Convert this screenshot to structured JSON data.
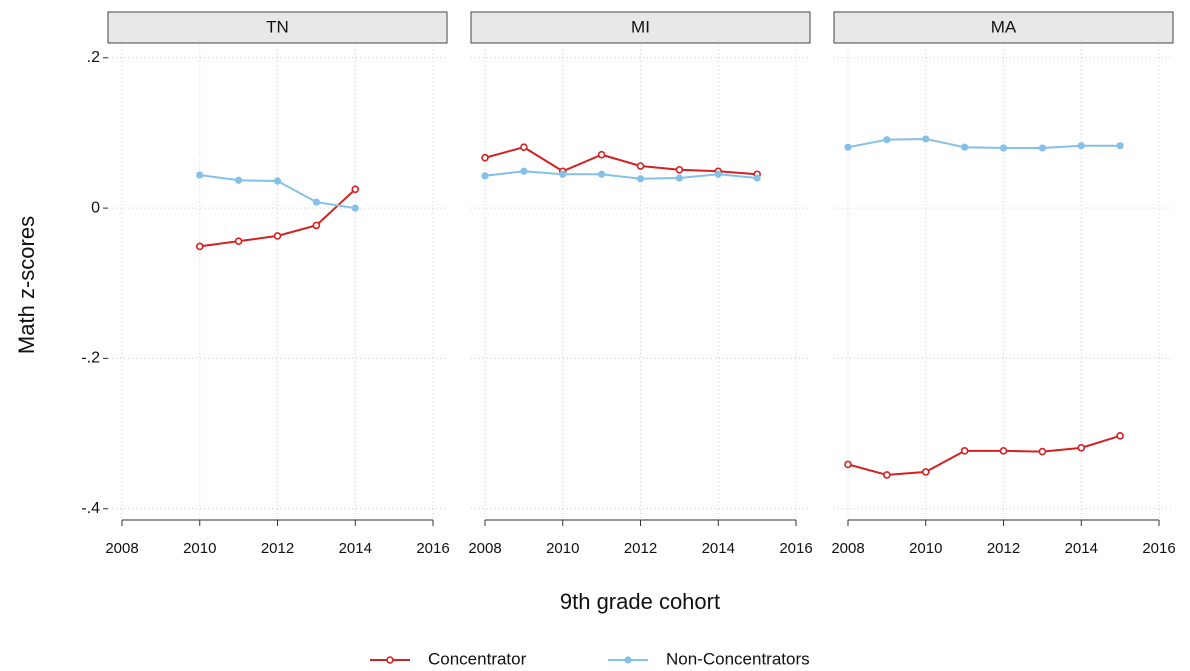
{
  "chart_data": [
    {
      "type": "line",
      "title": "TN",
      "ylabel": "Math z-scores",
      "x": [
        2010,
        2011,
        2012,
        2013,
        2014
      ],
      "series": [
        {
          "name": "Concentrator",
          "color": "#d42020",
          "values": [
            -0.051,
            -0.044,
            -0.037,
            -0.023,
            0.025
          ]
        },
        {
          "name": "Non-Concentrators",
          "color": "#85c0e8",
          "values": [
            0.044,
            0.037,
            0.036,
            0.008,
            0.0
          ]
        }
      ],
      "xlim": [
        2008,
        2016
      ],
      "xticks": [
        2008,
        2010,
        2012,
        2014,
        2016
      ],
      "ylim": [
        -0.415,
        0.217
      ],
      "yticks": [
        {
          "value": 0.2,
          "label": ".2"
        },
        0,
        {
          "value": -0.2,
          "label": "-.2"
        },
        {
          "value": -0.4,
          "label": "-.4"
        }
      ],
      "grid": true
    },
    {
      "type": "line",
      "title": "MI",
      "xlabel": "9th grade cohort",
      "x": [
        2008,
        2009,
        2010,
        2011,
        2012,
        2013,
        2014,
        2015
      ],
      "series": [
        {
          "name": "Concentrator",
          "color": "#d42020",
          "values": [
            0.067,
            0.081,
            0.049,
            0.071,
            0.056,
            0.051,
            0.049,
            0.045
          ]
        },
        {
          "name": "Non-Concentrators",
          "color": "#85c0e8",
          "values": [
            0.043,
            0.049,
            0.045,
            0.045,
            0.039,
            0.04,
            0.045,
            0.04
          ]
        }
      ],
      "xlim": [
        2008,
        2016
      ],
      "xticks": [
        2008,
        2010,
        2012,
        2014,
        2016
      ],
      "grid": true
    },
    {
      "type": "line",
      "title": "MA",
      "x": [
        2008,
        2009,
        2010,
        2011,
        2012,
        2013,
        2014,
        2015
      ],
      "series": [
        {
          "name": "Concentrator",
          "color": "#d42020",
          "values": [
            -0.341,
            -0.355,
            -0.351,
            -0.323,
            -0.323,
            -0.324,
            -0.319,
            -0.303
          ]
        },
        {
          "name": "Non-Concentrators",
          "color": "#85c0e8",
          "values": [
            0.081,
            0.091,
            0.092,
            0.081,
            0.08,
            0.08,
            0.083,
            0.083
          ]
        }
      ],
      "xlim": [
        2008,
        2016
      ],
      "xticks": [
        2008,
        2010,
        2012,
        2014,
        2016
      ],
      "grid": true
    }
  ]
}
